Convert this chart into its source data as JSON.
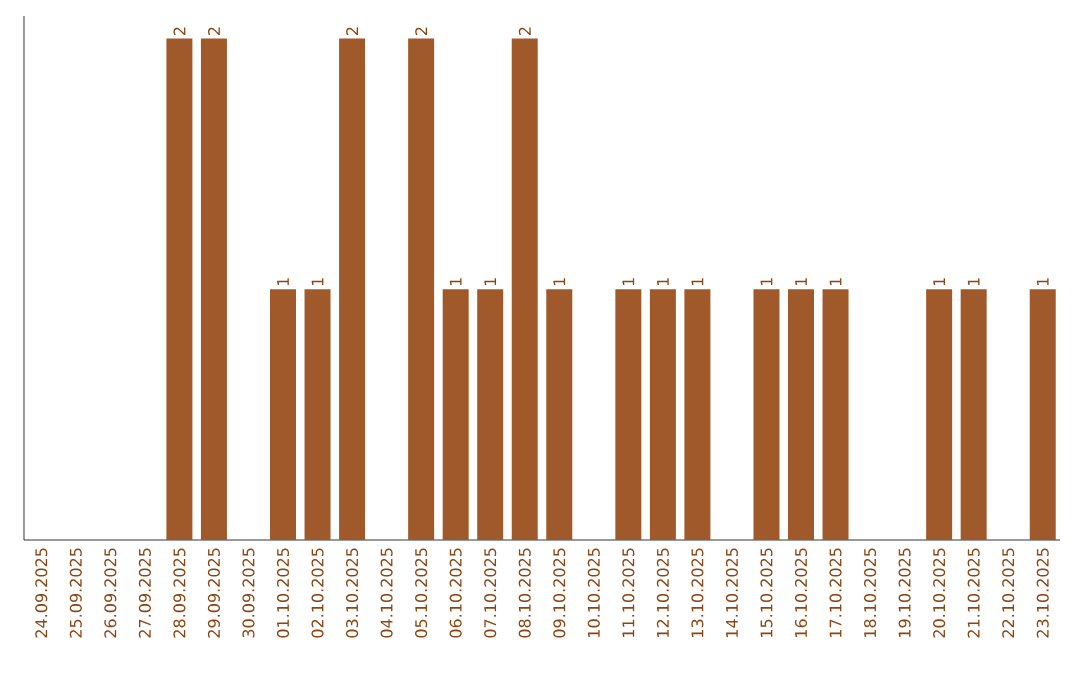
{
  "chart_data": {
    "type": "bar",
    "categories": [
      "24.09.2025",
      "25.09.2025",
      "26.09.2025",
      "27.09.2025",
      "28.09.2025",
      "29.09.2025",
      "30.09.2025",
      "01.10.2025",
      "02.10.2025",
      "03.10.2025",
      "04.10.2025",
      "05.10.2025",
      "06.10.2025",
      "07.10.2025",
      "08.10.2025",
      "09.10.2025",
      "10.10.2025",
      "11.10.2025",
      "12.10.2025",
      "13.10.2025",
      "14.10.2025",
      "15.10.2025",
      "16.10.2025",
      "17.10.2025",
      "18.10.2025",
      "19.10.2025",
      "20.10.2025",
      "21.10.2025",
      "22.10.2025",
      "23.10.2025"
    ],
    "values": [
      0,
      0,
      0,
      0,
      2,
      2,
      0,
      1,
      1,
      2,
      0,
      2,
      1,
      1,
      2,
      1,
      0,
      1,
      1,
      1,
      0,
      1,
      1,
      1,
      0,
      0,
      1,
      1,
      0,
      1
    ],
    "value_labels": [
      null,
      null,
      null,
      null,
      "2",
      "2",
      null,
      "1",
      "1",
      "2",
      null,
      "2",
      "1",
      "1",
      "2",
      "1",
      null,
      "1",
      "1",
      "1",
      null,
      "1",
      "1",
      "1",
      null,
      null,
      "1",
      "1",
      null,
      "1"
    ],
    "color": "#a0592a",
    "ylim": [
      0,
      2
    ]
  }
}
